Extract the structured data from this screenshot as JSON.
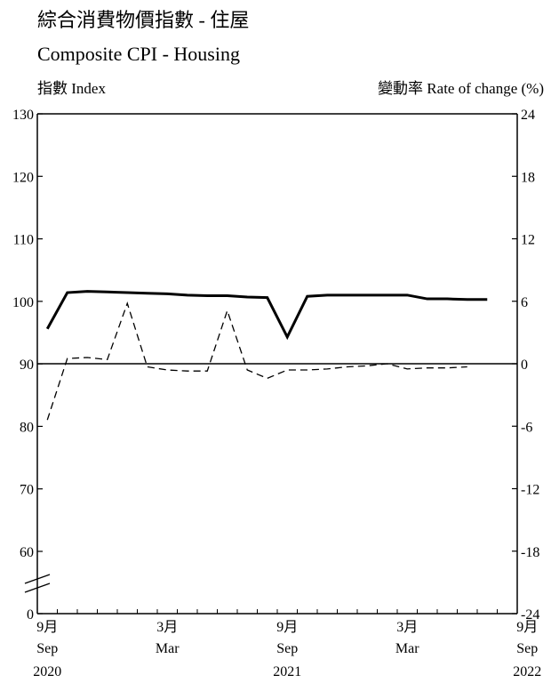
{
  "title_zh": "綜合消費物價指數 - 住屋",
  "title_en": "Composite CPI - Housing",
  "left_axis_label": "指數 Index",
  "right_axis_label": "變動率 Rate of change (%)",
  "chart_data": {
    "type": "line",
    "x_month_index": "months since Sep 2020",
    "x_ticks": [
      {
        "m": 0,
        "month": "9月",
        "abbr": "Sep",
        "year": "2020"
      },
      {
        "m": 6,
        "month": "3月",
        "abbr": "Mar",
        "year": ""
      },
      {
        "m": 12,
        "month": "9月",
        "abbr": "Sep",
        "year": "2021"
      },
      {
        "m": 18,
        "month": "3月",
        "abbr": "Mar",
        "year": ""
      },
      {
        "m": 24,
        "month": "9月",
        "abbr": "Sep",
        "year": "2022"
      }
    ],
    "xlim": [
      0,
      24
    ],
    "left_axis": {
      "ylim": [
        0,
        130
      ],
      "ticks": [
        0,
        60,
        70,
        80,
        90,
        100,
        110,
        120,
        130
      ],
      "broken": true
    },
    "right_axis": {
      "ylim": [
        -24,
        24
      ],
      "ticks": [
        -24,
        -18,
        -12,
        -6,
        0,
        6,
        12,
        18,
        24
      ]
    },
    "zero_line_right": 0,
    "series": [
      {
        "axis": "left",
        "style": "solid-thick",
        "values": [
          95.6,
          101.4,
          101.6,
          101.5,
          101.4,
          101.3,
          101.2,
          101.0,
          100.9,
          100.9,
          100.7,
          100.6,
          94.3,
          100.8,
          101.0,
          101.0,
          101.0,
          101.0,
          101.0,
          100.4,
          100.4,
          100.3,
          100.3
        ]
      },
      {
        "axis": "right",
        "style": "dashed",
        "values": [
          -5.4,
          0.5,
          0.6,
          0.4,
          5.8,
          -0.3,
          -0.6,
          -0.7,
          -0.7,
          5.1,
          -0.6,
          -1.4,
          -0.6,
          -0.6,
          -0.5,
          -0.3,
          -0.2,
          0.0,
          -0.5,
          -0.4,
          -0.4,
          -0.3
        ]
      }
    ]
  }
}
